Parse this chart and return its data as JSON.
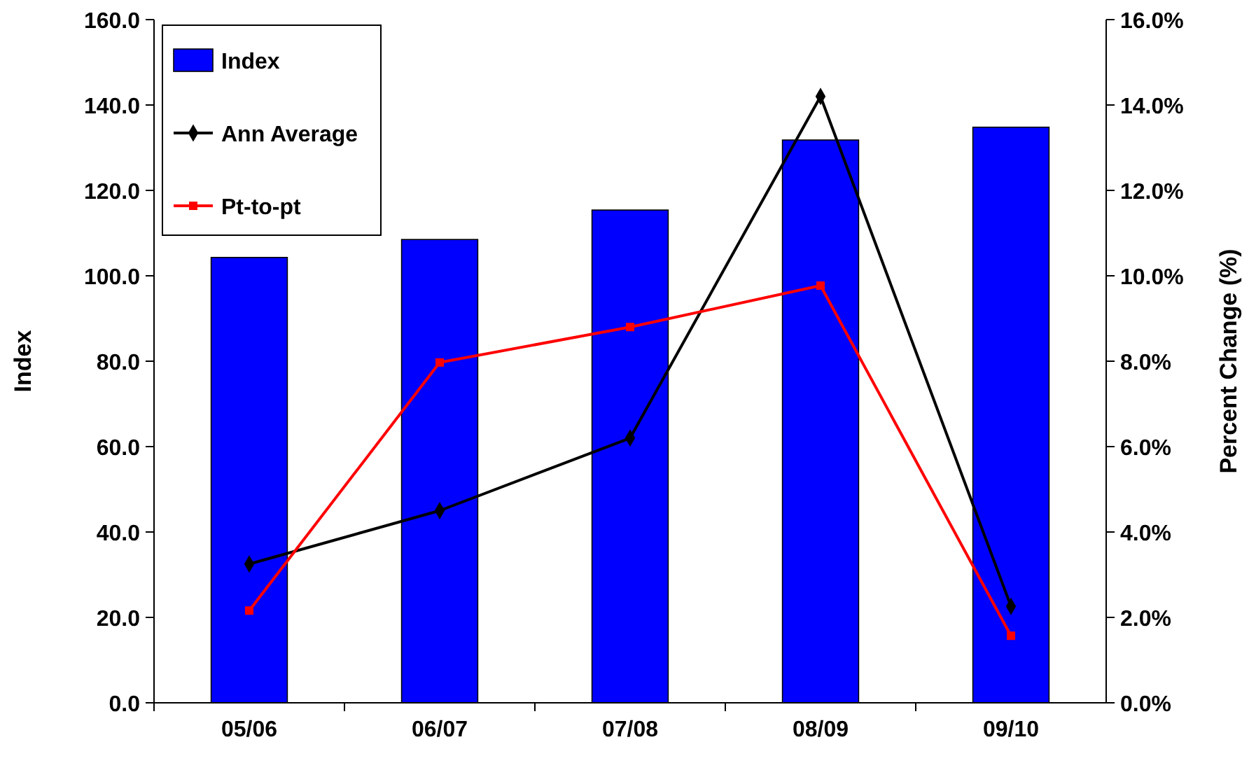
{
  "chart_data": {
    "type": "bar",
    "categories": [
      "05/06",
      "06/07",
      "07/08",
      "08/09",
      "09/10"
    ],
    "series": [
      {
        "name": "Index",
        "color": "#0000ff",
        "values": [
          104.3,
          108.5,
          115.4,
          131.8,
          134.8
        ]
      },
      {
        "name": "Ann Average",
        "type": "line",
        "axis": "y2",
        "color": "#000000",
        "marker": "diamond",
        "values": [
          3.25,
          4.5,
          6.2,
          14.2,
          2.26
        ]
      },
      {
        "name": "Pt-to-pt",
        "type": "line",
        "axis": "y2",
        "color": "#ff0000",
        "marker": "square",
        "values": [
          2.16,
          7.97,
          8.8,
          9.77,
          1.57
        ]
      }
    ],
    "ylabel": "Index",
    "y2label": "Percent Change (%)",
    "ylim": [
      0,
      160
    ],
    "yticks": [
      {
        "value": 0,
        "label": "0.0"
      },
      {
        "value": 20,
        "label": "20.0"
      },
      {
        "value": 40,
        "label": "40.0"
      },
      {
        "value": 60,
        "label": "60.0"
      },
      {
        "value": 80,
        "label": "80.0"
      },
      {
        "value": 100,
        "label": "100.0"
      },
      {
        "value": 120,
        "label": "120.0"
      },
      {
        "value": 140,
        "label": "140.0"
      },
      {
        "value": 160,
        "label": "160.0"
      }
    ],
    "y2lim": [
      0,
      16
    ],
    "y2ticks": [
      {
        "value": 0,
        "label": "0.0%"
      },
      {
        "value": 2,
        "label": "2.0%"
      },
      {
        "value": 4,
        "label": "4.0%"
      },
      {
        "value": 6,
        "label": "6.0%"
      },
      {
        "value": 8,
        "label": "8.0%"
      },
      {
        "value": 10,
        "label": "10.0%"
      },
      {
        "value": 12,
        "label": "12.0%"
      },
      {
        "value": 14,
        "label": "14.0%"
      },
      {
        "value": 16,
        "label": "16.0%"
      }
    ],
    "legend": "top left",
    "grid": false
  }
}
